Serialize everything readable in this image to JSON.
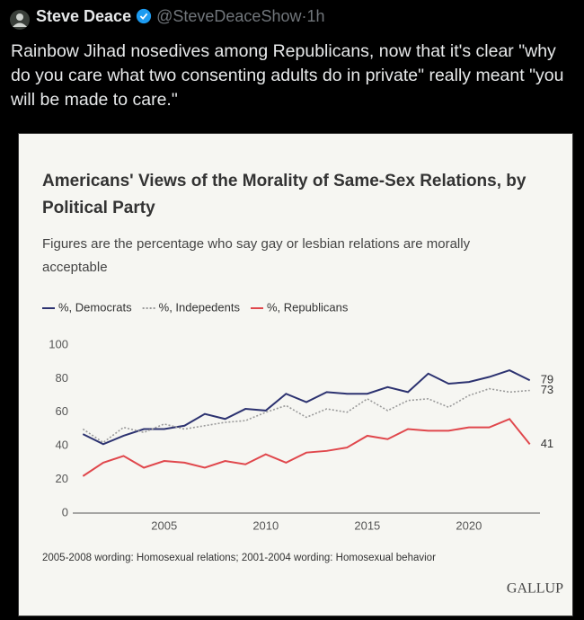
{
  "tweet": {
    "name": "Steve Deace",
    "handle": "@SteveDeaceShow",
    "separator": "·",
    "time": "1h",
    "text": "Rainbow Jihad nosedives among Republicans, now that it's clear \"why do you care what two consenting adults do in private\" really meant \"you will be made to care.\""
  },
  "chart_data": {
    "type": "line",
    "title": "Americans' Views of the Morality of Same-Sex Relations, by Political Party",
    "subtitle": "Figures are the percentage who say gay or lesbian relations are morally acceptable",
    "note": "2005-2008 wording: Homosexual relations; 2001-2004 wording: Homosexual behavior",
    "source": "GALLUP",
    "x": [
      2001,
      2002,
      2003,
      2004,
      2005,
      2006,
      2007,
      2008,
      2009,
      2010,
      2011,
      2012,
      2013,
      2014,
      2015,
      2016,
      2017,
      2018,
      2019,
      2020,
      2021,
      2022,
      2023
    ],
    "series": [
      {
        "name": "%, Democrats",
        "color": "#2c3270",
        "style": "solid",
        "values": [
          47,
          41,
          46,
          50,
          50,
          52,
          59,
          56,
          62,
          61,
          71,
          66,
          72,
          71,
          71,
          75,
          72,
          83,
          77,
          78,
          81,
          85,
          79
        ]
      },
      {
        "name": "%, Indepedents",
        "color": "#9a9a9a",
        "style": "dotted",
        "values": [
          50,
          42,
          51,
          48,
          53,
          50,
          52,
          54,
          55,
          60,
          64,
          57,
          62,
          60,
          68,
          61,
          67,
          68,
          63,
          70,
          74,
          72,
          73
        ]
      },
      {
        "name": "%, Republicans",
        "color": "#e0474c",
        "style": "solid",
        "values": [
          22,
          30,
          34,
          27,
          31,
          30,
          27,
          31,
          29,
          35,
          30,
          36,
          37,
          39,
          46,
          44,
          50,
          49,
          49,
          51,
          51,
          56,
          41
        ]
      }
    ],
    "end_labels": true,
    "xlim": [
      2000.5,
      2023.5
    ],
    "xticks": [
      2005,
      2010,
      2015,
      2020
    ],
    "ylim": [
      0,
      100
    ],
    "yticks": [
      0,
      20,
      40,
      60,
      80,
      100
    ],
    "grid": false
  }
}
